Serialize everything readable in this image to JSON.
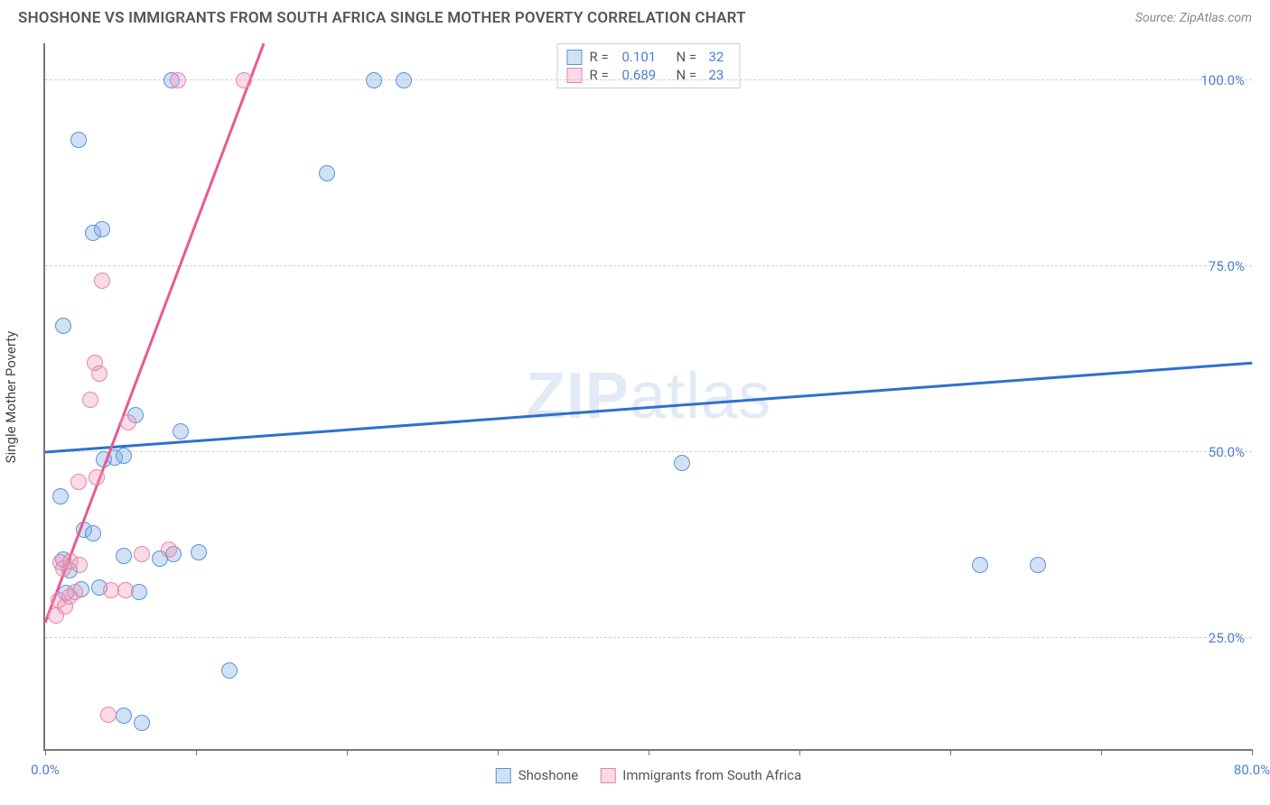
{
  "header": {
    "title": "SHOSHONE VS IMMIGRANTS FROM SOUTH AFRICA SINGLE MOTHER POVERTY CORRELATION CHART",
    "source": "Source: ZipAtlas.com"
  },
  "chart": {
    "type": "scatter",
    "background_color": "#ffffff",
    "axis_color": "#777777",
    "grid_color": "#d5d5d5",
    "text_color": "#555555",
    "value_color": "#4a7fd6",
    "yaxis_label": "Single Mother Poverty",
    "xlim": [
      0,
      80
    ],
    "ylim": [
      10,
      105
    ],
    "yticks": [
      {
        "v": 25,
        "label": "25.0%"
      },
      {
        "v": 50,
        "label": "50.0%"
      },
      {
        "v": 75,
        "label": "75.0%"
      },
      {
        "v": 100,
        "label": "100.0%"
      }
    ],
    "xticks": [
      {
        "v": 0,
        "label": "0.0%"
      },
      {
        "v": 10,
        "label": ""
      },
      {
        "v": 20,
        "label": ""
      },
      {
        "v": 30,
        "label": ""
      },
      {
        "v": 40,
        "label": ""
      },
      {
        "v": 50,
        "label": ""
      },
      {
        "v": 60,
        "label": ""
      },
      {
        "v": 70,
        "label": ""
      },
      {
        "v": 80,
        "label": "80.0%"
      }
    ],
    "marker_radius": 9,
    "series": [
      {
        "name": "Shoshone",
        "fill": "rgba(120,170,230,0.35)",
        "stroke": "#5b93d6",
        "r": "0.101",
        "n": "32",
        "trend": {
          "x1": 0,
          "y1": 50,
          "x2": 80,
          "y2": 62,
          "color": "#2f6fd0",
          "width": 3
        },
        "points": [
          {
            "x": 1.2,
            "y": 67
          },
          {
            "x": 2.2,
            "y": 92
          },
          {
            "x": 3.2,
            "y": 79.5
          },
          {
            "x": 3.8,
            "y": 80
          },
          {
            "x": 1.0,
            "y": 44
          },
          {
            "x": 1.2,
            "y": 35.5
          },
          {
            "x": 1.6,
            "y": 34
          },
          {
            "x": 1.4,
            "y": 31
          },
          {
            "x": 2.4,
            "y": 31.5
          },
          {
            "x": 2.6,
            "y": 39.5
          },
          {
            "x": 3.2,
            "y": 39
          },
          {
            "x": 3.6,
            "y": 31.8
          },
          {
            "x": 3.9,
            "y": 49
          },
          {
            "x": 4.6,
            "y": 49.2
          },
          {
            "x": 5.2,
            "y": 49.5
          },
          {
            "x": 6.2,
            "y": 31.2
          },
          {
            "x": 6.0,
            "y": 55
          },
          {
            "x": 5.2,
            "y": 36
          },
          {
            "x": 8.4,
            "y": 100
          },
          {
            "x": 8.5,
            "y": 36.2
          },
          {
            "x": 7.6,
            "y": 35.6
          },
          {
            "x": 10.2,
            "y": 36.5
          },
          {
            "x": 9.0,
            "y": 52.8
          },
          {
            "x": 12.2,
            "y": 20.6
          },
          {
            "x": 5.2,
            "y": 14.5
          },
          {
            "x": 6.4,
            "y": 13.5
          },
          {
            "x": 18.7,
            "y": 87.5
          },
          {
            "x": 21.8,
            "y": 100
          },
          {
            "x": 23.8,
            "y": 100
          },
          {
            "x": 42.2,
            "y": 48.5
          },
          {
            "x": 62.0,
            "y": 34.8
          },
          {
            "x": 65.8,
            "y": 34.8
          }
        ]
      },
      {
        "name": "Immigrants from South Africa",
        "fill": "rgba(240,150,180,0.35)",
        "stroke": "#e386aa",
        "r": "0.689",
        "n": "23",
        "trend": {
          "x1": 0,
          "y1": 27,
          "x2": 14.5,
          "y2": 105,
          "color": "#e85a8f",
          "width": 3
        },
        "points": [
          {
            "x": 0.7,
            "y": 28
          },
          {
            "x": 0.9,
            "y": 30
          },
          {
            "x": 1.0,
            "y": 35.2
          },
          {
            "x": 1.2,
            "y": 34.3
          },
          {
            "x": 1.3,
            "y": 29.2
          },
          {
            "x": 1.6,
            "y": 30.5
          },
          {
            "x": 1.7,
            "y": 35.3
          },
          {
            "x": 2.0,
            "y": 31.2
          },
          {
            "x": 2.2,
            "y": 46
          },
          {
            "x": 2.3,
            "y": 34.8
          },
          {
            "x": 3.0,
            "y": 57
          },
          {
            "x": 3.3,
            "y": 62
          },
          {
            "x": 3.4,
            "y": 46.6
          },
          {
            "x": 3.6,
            "y": 60.5
          },
          {
            "x": 3.8,
            "y": 73
          },
          {
            "x": 4.4,
            "y": 31.4
          },
          {
            "x": 5.3,
            "y": 31.4
          },
          {
            "x": 5.5,
            "y": 54
          },
          {
            "x": 6.4,
            "y": 36.2
          },
          {
            "x": 8.2,
            "y": 36.8
          },
          {
            "x": 4.2,
            "y": 14.6
          },
          {
            "x": 8.8,
            "y": 100
          },
          {
            "x": 13.2,
            "y": 100
          }
        ]
      }
    ],
    "legend_top": {
      "r_label": "R =",
      "n_label": "N ="
    },
    "legend_bottom": [
      {
        "label": "Shoshone",
        "fill": "rgba(120,170,230,0.35)",
        "stroke": "#5b93d6"
      },
      {
        "label": "Immigrants from South Africa",
        "fill": "rgba(240,150,180,0.35)",
        "stroke": "#e386aa"
      }
    ],
    "watermark": {
      "bold": "ZIP",
      "rest": "atlas"
    }
  }
}
